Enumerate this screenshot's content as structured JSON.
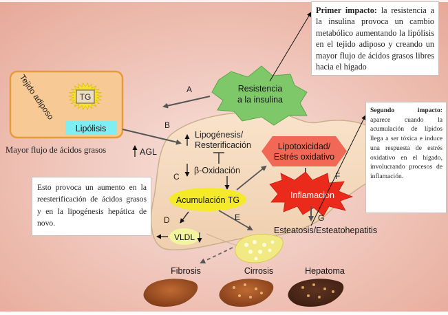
{
  "labels": {
    "tejido_adiposo": "Tejido adiposo",
    "tg_adipose": "TG",
    "lipolisis": "Lipólisis",
    "mayor_flujo": "Mayor flujo de ácidos grasos",
    "agl": "AGL",
    "resistencia": [
      "Resistencia",
      "a la insulina"
    ],
    "lipogenesis": [
      "Lipogénesis/",
      "Resterificación"
    ],
    "beta_oxidacion": "β-Oxidación",
    "acumulacion": "Acumulación TG",
    "vldl": "VLDL",
    "lipotoxicidad": [
      "Lipotoxicidad/",
      "Estrés oxidativo"
    ],
    "inflamacion": "Inflamación",
    "esteatosis": "Esteatosis/Esteatohepatitis",
    "fibrosis": "Fibrosis",
    "cirrosis": "Cirrosis",
    "hepatoma": "Hepatoma"
  },
  "step_letters": {
    "a": "A",
    "b": "B",
    "c": "C",
    "d": "D",
    "e": "E",
    "f": "F",
    "g": "G"
  },
  "annotations": {
    "primer_title": "Primer impacto:",
    "primer_body": "la resistencia a la insulina provoca un cambio metabólico aumentando la lipólisis en el tejido adiposo y creando un mayor flujo de ácidos grasos libres hacia el hígado",
    "segundo_title": "Segundo impacto:",
    "segundo_body": "aparece cuando la acumulación de lípidos llega a ser tóxica e induce una respuesta de estrés oxidativo en el hígado, involucrando procesos de inflamación.",
    "esto_body": "Esto provoca un aumento en la reesterificación de ácidos grasos y en la lipogénesis hepática de novo."
  },
  "colors": {
    "background": "#ecb9ab",
    "liver": "#f6dcc2",
    "liver_outline": "#c9b08c",
    "adipose_box": "#f6c995",
    "tg_sun": "#f4e22c",
    "lipolisis_bar": "#7eeef3",
    "star_green": "#7ec86a",
    "acumulacion": "#f4ea2a",
    "lipotox_hex": "#f26857",
    "inflamacion": "#ea2b1c",
    "vldl": "#f3f59e",
    "cirrhosis_liver": "#a04f2a"
  }
}
